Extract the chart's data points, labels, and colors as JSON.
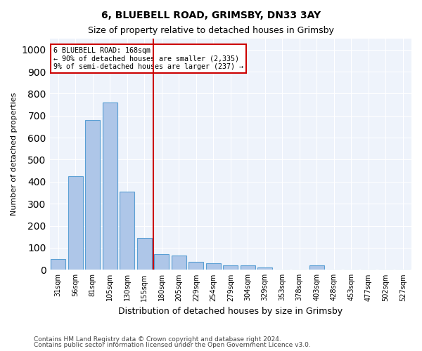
{
  "title1": "6, BLUEBELL ROAD, GRIMSBY, DN33 3AY",
  "title2": "Size of property relative to detached houses in Grimsby",
  "xlabel": "Distribution of detached houses by size in Grimsby",
  "ylabel": "Number of detached properties",
  "bar_labels": [
    "31sqm",
    "56sqm",
    "81sqm",
    "105sqm",
    "130sqm",
    "155sqm",
    "180sqm",
    "205sqm",
    "229sqm",
    "254sqm",
    "279sqm",
    "304sqm",
    "329sqm",
    "353sqm",
    "378sqm",
    "403sqm",
    "428sqm",
    "453sqm",
    "477sqm",
    "502sqm",
    "527sqm"
  ],
  "bar_values": [
    50,
    425,
    680,
    760,
    355,
    145,
    70,
    65,
    35,
    30,
    20,
    20,
    10,
    0,
    0,
    20,
    0,
    0,
    0,
    0,
    0
  ],
  "bar_color": "#aec6e8",
  "bar_edge_color": "#5a9fd4",
  "vline_x": 5.5,
  "vline_color": "#cc0000",
  "annotation_box_color": "#cc0000",
  "annotation_text1": "6 BLUEBELL ROAD: 168sqm",
  "annotation_text2": "← 90% of detached houses are smaller (2,335)",
  "annotation_text3": "9% of semi-detached houses are larger (237) →",
  "ylim": [
    0,
    1050
  ],
  "background_color": "#eef3fb",
  "footer1": "Contains HM Land Registry data © Crown copyright and database right 2024.",
  "footer2": "Contains public sector information licensed under the Open Government Licence v3.0."
}
